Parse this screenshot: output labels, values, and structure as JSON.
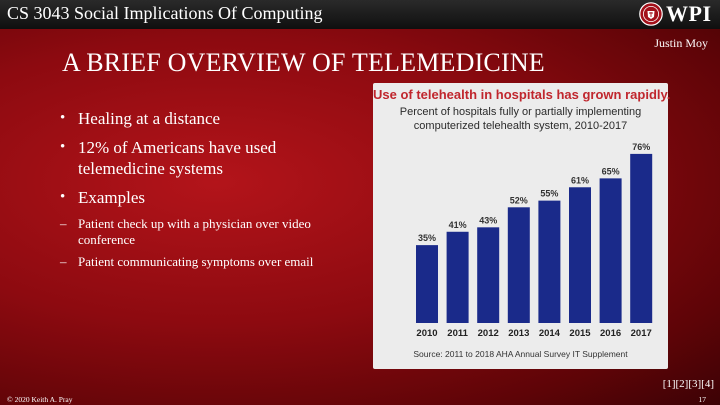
{
  "header": {
    "course_title": "CS 3043 Social Implications Of Computing",
    "logo_text": "WPI",
    "author": "Justin Moy"
  },
  "slide": {
    "title": "A BRIEF OVERVIEW OF TELEMEDICINE",
    "bullets": [
      "Healing at a distance",
      "12% of Americans have used telemedicine systems",
      "Examples"
    ],
    "sub_bullets": [
      "Patient check up with a physician over video conference",
      "Patient communicating symptoms over email"
    ]
  },
  "chart_data": {
    "type": "bar",
    "title": "Use of telehealth in hospitals has grown rapidly.",
    "subtitle_line1": "Percent of hospitals fully or partially implementing",
    "subtitle_line2": "computerized telehealth system, 2010-2017",
    "categories": [
      "2010",
      "2011",
      "2012",
      "2013",
      "2014",
      "2015",
      "2016",
      "2017"
    ],
    "values": [
      35,
      41,
      43,
      52,
      55,
      61,
      65,
      76
    ],
    "value_labels": [
      "35%",
      "41%",
      "43%",
      "52%",
      "55%",
      "61%",
      "65%",
      "76%"
    ],
    "ylim": [
      0,
      80
    ],
    "xlabel": "",
    "ylabel": "",
    "bar_color": "#1a2a8a",
    "source": "Source: 2011 to 2018 AHA Annual Survey IT Supplement"
  },
  "footer": {
    "references": "[1][2][3][4]",
    "copyright": "© 2020 Keith A. Pray",
    "page_number": "17"
  },
  "colors": {
    "background": "#8d0a10",
    "title_red": "#c0262d"
  }
}
